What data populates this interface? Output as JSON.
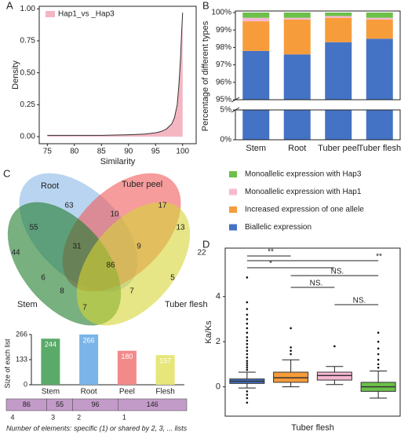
{
  "chart_data": [
    {
      "type": "density",
      "panel": "A",
      "xlabel": "Similarity",
      "ylabel": "Density",
      "series": [
        {
          "name": "Hap1_vs _Hap3",
          "color": "#f4b6c2",
          "line_color": "#333333",
          "x": [
            75,
            80,
            85,
            90,
            93,
            95,
            96,
            97,
            98,
            98.5,
            99,
            99.3,
            99.6,
            99.8,
            100
          ],
          "values": [
            0.01,
            0.01,
            0.01,
            0.015,
            0.02,
            0.03,
            0.04,
            0.06,
            0.1,
            0.15,
            0.25,
            0.4,
            0.6,
            0.8,
            0.97
          ]
        }
      ],
      "xlim": [
        73.5,
        102.5
      ],
      "xticks": [
        75,
        80,
        85,
        90,
        95,
        100
      ],
      "ylim": [
        -0.055,
        1.02
      ],
      "yticks": [
        {
          "value": 0,
          "label": "0.00"
        },
        {
          "value": 0.25,
          "label": "0.25"
        },
        {
          "value": 0.5,
          "label": "0.50"
        },
        {
          "value": 0.75,
          "label": "0.75"
        },
        {
          "value": 1,
          "label": "1.00"
        }
      ]
    },
    {
      "type": "stacked_bar",
      "panel": "B",
      "ylabel": "Percentage of different types",
      "categories": [
        "Stem",
        "Root",
        "Tuber peel",
        "Tuber flesh"
      ],
      "series": [
        {
          "name": "Biallelic expression",
          "color": "#4472c4",
          "values": [
            97.8,
            97.6,
            98.3,
            98.5
          ]
        },
        {
          "name": "Increased expression of one allele",
          "color": "#f79c3a",
          "values": [
            1.7,
            2.0,
            1.4,
            1.1
          ]
        },
        {
          "name": "Monoallelic expression with Hap1",
          "color": "#f7b8d2",
          "values": [
            0.2,
            0.1,
            0.1,
            0.1
          ]
        },
        {
          "name": "Monoallelic expression with Hap3",
          "color": "#6cc04a",
          "values": [
            0.3,
            0.3,
            0.2,
            0.3
          ]
        }
      ],
      "ylim": [
        0,
        100
      ],
      "axis_break": [
        5,
        95
      ],
      "yticks": [
        {
          "value": 0,
          "label": "0%"
        },
        {
          "value": 5,
          "label": "5%"
        },
        {
          "value": 95,
          "label": "95%"
        },
        {
          "value": 96,
          "label": "96%"
        },
        {
          "value": 97,
          "label": "97%"
        },
        {
          "value": 98,
          "label": "98%"
        },
        {
          "value": 99,
          "label": "99%"
        },
        {
          "value": 100,
          "label": "100%"
        }
      ]
    },
    {
      "type": "venn",
      "panel": "C",
      "sets": [
        {
          "name": "Root",
          "color": "#8ab8e6"
        },
        {
          "name": "Tuber peel",
          "color": "#f05a5a"
        },
        {
          "name": "Stem",
          "color": "#1e7b2c"
        },
        {
          "name": "Tuber flesh",
          "color": "#d6d636"
        }
      ],
      "regions": [
        63,
        17,
        10,
        55,
        13,
        31,
        9,
        86,
        44,
        22,
        6,
        5,
        8,
        7,
        7
      ]
    },
    {
      "type": "bar",
      "ylabel": "Size of each list",
      "categories": [
        "Stem",
        "Root",
        "Peel",
        "Flesh"
      ],
      "values": [
        244,
        266,
        180,
        157
      ],
      "colors": [
        "#5aaa6a",
        "#7ab4e8",
        "#f28a8a",
        "#e6e67a"
      ],
      "ylim": [
        0,
        266
      ],
      "yticks": [
        0,
        133,
        266
      ]
    },
    {
      "type": "segments",
      "categories": [
        "4",
        "3",
        "2",
        "1"
      ],
      "values": [
        86,
        55,
        96,
        146
      ],
      "color": "#c39bc9",
      "caption": "Number of elements: specific (1) or shared by 2, 3, ... lists"
    },
    {
      "type": "box",
      "panel": "D",
      "ylabel": "Ka/Ks",
      "xlabel": "Tuber flesh",
      "boxes": [
        {
          "color": "#4472c4",
          "whisker_low": -0.05,
          "q1": 0.15,
          "median": 0.25,
          "q3": 0.35,
          "whisker_high": 0.65,
          "outliers": [
            0.75,
            0.85,
            0.95,
            1.05,
            1.15,
            1.3,
            1.45,
            1.6,
            1.75,
            1.9,
            2.05,
            2.2,
            2.4,
            2.6,
            2.8,
            3.0,
            3.2,
            3.45,
            3.75,
            4.85,
            -0.2,
            -0.35,
            -0.5,
            -0.7
          ]
        },
        {
          "color": "#f79c3a",
          "whisker_low": 0.0,
          "q1": 0.2,
          "median": 0.4,
          "q3": 0.65,
          "whisker_high": 1.2,
          "outliers": [
            1.45,
            1.6,
            1.75,
            2.6
          ]
        },
        {
          "color": "#f7b8d2",
          "whisker_low": 0.1,
          "q1": 0.3,
          "median": 0.5,
          "q3": 0.65,
          "whisker_high": 0.9,
          "outliers": [
            1.8
          ]
        },
        {
          "color": "#6cc04a",
          "whisker_low": -0.5,
          "q1": -0.2,
          "median": 0.0,
          "q3": 0.2,
          "whisker_high": 0.7,
          "outliers": [
            0.85,
            1.0,
            1.2,
            1.45,
            1.7,
            2.0,
            2.4
          ]
        }
      ],
      "ylim": [
        -1.3,
        6.15
      ],
      "yticks": [
        0,
        2,
        4
      ],
      "comparisons": [
        {
          "pair": [
            0,
            1
          ],
          "label": "**"
        },
        {
          "pair": [
            0,
            3
          ],
          "label": "**"
        },
        {
          "pair": [
            0,
            2
          ],
          "label": "*"
        },
        {
          "pair": [
            1,
            3
          ],
          "label": "NS."
        },
        {
          "pair": [
            1,
            2
          ],
          "label": "NS."
        },
        {
          "pair": [
            2,
            3
          ],
          "label": "NS."
        }
      ]
    }
  ]
}
